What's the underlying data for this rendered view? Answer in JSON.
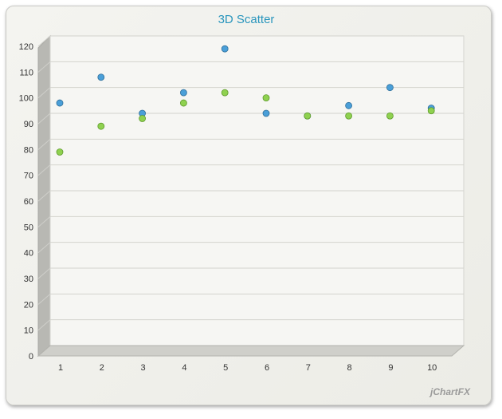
{
  "chart_data": {
    "type": "scatter",
    "title": "3D Scatter",
    "xlabel": "",
    "ylabel": "",
    "categories": [
      "1",
      "2",
      "3",
      "4",
      "5",
      "6",
      "7",
      "8",
      "9",
      "10"
    ],
    "ylim": [
      0,
      120
    ],
    "yticks": [
      "0",
      "10",
      "20",
      "30",
      "40",
      "50",
      "60",
      "70",
      "80",
      "90",
      "100",
      "110",
      "120"
    ],
    "grid": true,
    "series": [
      {
        "color": "#4a9fd8",
        "values": [
          94,
          104,
          90,
          98,
          115,
          90,
          89,
          93,
          100,
          92
        ]
      },
      {
        "color": "#8fd14f",
        "values": [
          75,
          85,
          88,
          94,
          98,
          96,
          89,
          89,
          89,
          91
        ]
      }
    ]
  },
  "branding": {
    "logo_text": "jChartFX"
  }
}
